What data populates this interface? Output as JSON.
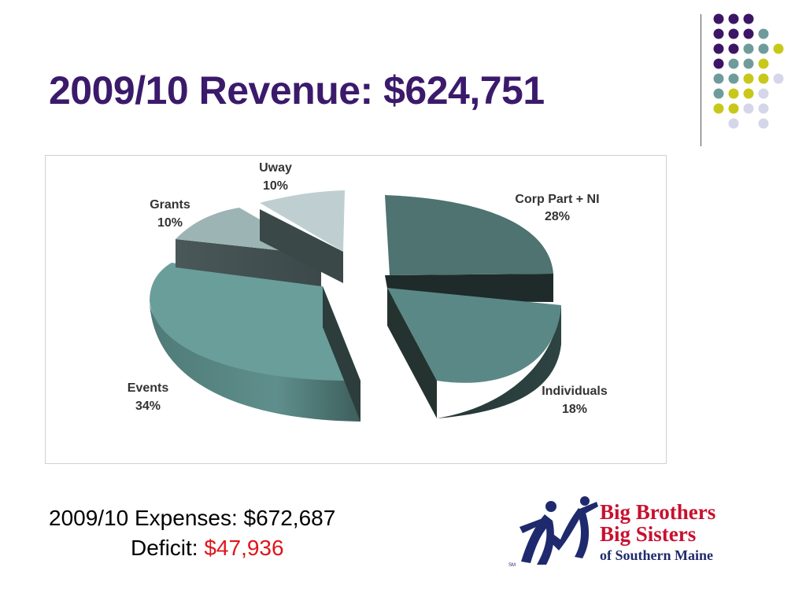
{
  "title": "2009/10 Revenue:  $624,751",
  "chart_data": {
    "type": "pie",
    "title": "",
    "slices": [
      {
        "name": "Corp Part + NI",
        "pct_label": "28%",
        "value": 28
      },
      {
        "name": "Individuals",
        "pct_label": "18%",
        "value": 18
      },
      {
        "name": "Events",
        "pct_label": "34%",
        "value": 34
      },
      {
        "name": "Grants",
        "pct_label": "10%",
        "value": 10
      },
      {
        "name": "Uway",
        "pct_label": "10%",
        "value": 10
      }
    ]
  },
  "footer": {
    "expenses_label": "2009/10 Expenses:  $672,687",
    "deficit_label": "Deficit:",
    "deficit_value": "$47,936"
  },
  "logo": {
    "line1": "Big Brothers",
    "line2": "Big Sisters",
    "line3": "of Southern Maine",
    "mark": "SM"
  },
  "colors": {
    "title": "#3b1a6b",
    "deficit": "#e0141b",
    "logo_red": "#c8102e",
    "logo_navy": "#1f2a6e"
  }
}
